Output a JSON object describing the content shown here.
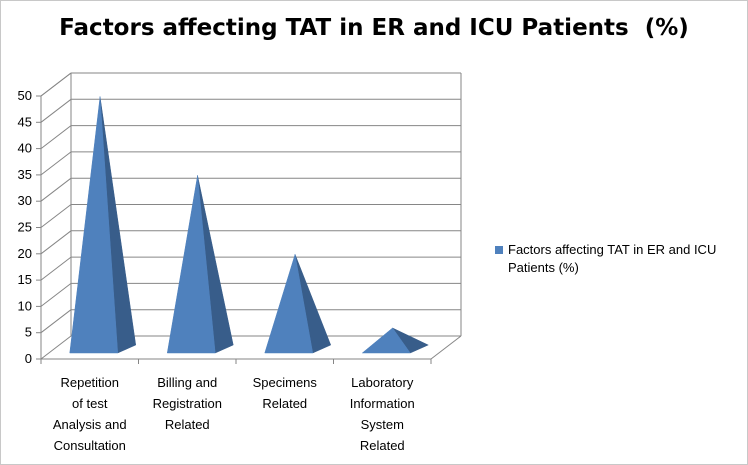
{
  "chart_data": {
    "type": "bar",
    "title": "Factors affecting TAT in ER and ICU Patients  (%)",
    "categories": [
      "Repetition of test Analysis and Consultation",
      "Billing and Registration Related",
      "Specimens Related",
      "Laboratory Information System Related"
    ],
    "category_lines": [
      [
        "Repetition",
        "of test",
        "Analysis and",
        "Consultation"
      ],
      [
        "Billing and",
        "Registration",
        "Related"
      ],
      [
        "Specimens",
        "Related"
      ],
      [
        "Laboratory",
        "Information",
        "System",
        "Related"
      ]
    ],
    "series": [
      {
        "name": "Factors affecting TAT in ER and ICU Patients  (%)",
        "values": [
          48,
          33,
          18,
          4
        ]
      }
    ],
    "ylim": [
      0,
      50
    ],
    "yticks": [
      "0",
      "5",
      "10",
      "15",
      "20",
      "25",
      "30",
      "35",
      "40",
      "45",
      "50"
    ],
    "xlabel": "",
    "ylabel": "",
    "grid": true,
    "legend_position": "right",
    "style": "3d-pyramid",
    "colors": {
      "front": "#4f81bd",
      "side": "#385d8a",
      "grid": "#868686"
    }
  }
}
